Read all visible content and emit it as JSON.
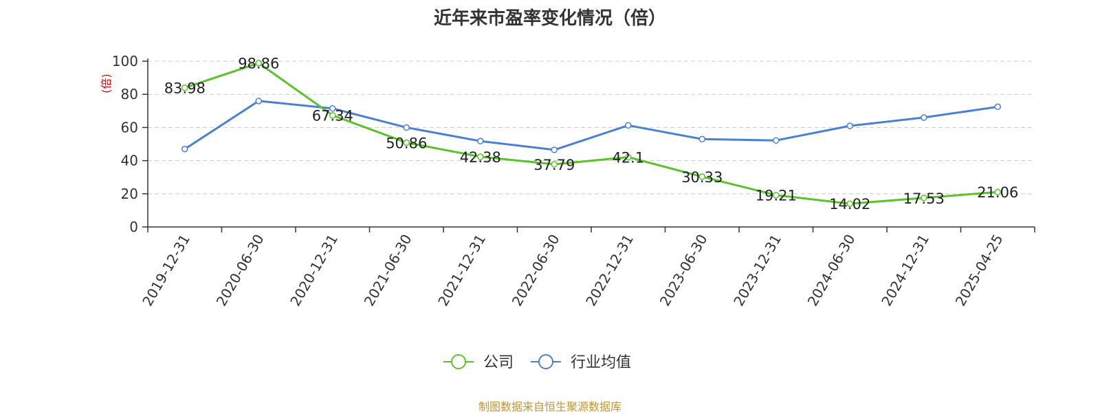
{
  "source_note": "制图数据来自恒生聚源数据库",
  "colors": {
    "company": "#5ac32a",
    "industry": "#4a7fd8",
    "ylabel": "#e00000",
    "source": "#c0962f"
  },
  "chart_data": {
    "type": "line",
    "title": "近年来市盈率变化情况（倍）",
    "ylabel": "(倍)",
    "xlabel": "",
    "ylim": [
      0,
      100
    ],
    "yticks": [
      0,
      20,
      40,
      60,
      80,
      100
    ],
    "grid": "horizontal-dashed",
    "legend_position": "bottom-center",
    "categories": [
      "2019-12-31",
      "2020-06-30",
      "2020-12-31",
      "2021-06-30",
      "2021-12-31",
      "2022-06-30",
      "2022-12-31",
      "2023-06-30",
      "2023-12-31",
      "2024-06-30",
      "2024-12-31",
      "2025-04-25"
    ],
    "series": [
      {
        "name": "公司",
        "values": [
          83.98,
          98.86,
          67.34,
          50.86,
          42.38,
          37.79,
          42.1,
          30.33,
          19.21,
          14.02,
          17.53,
          21.06
        ],
        "labels": [
          "83.98",
          "98.86",
          "67.34",
          "50.86",
          "42.38",
          "37.79",
          "42.1",
          "30.33",
          "19.21",
          "14.02",
          "17.53",
          "21.06"
        ],
        "color": "#5ac32a"
      },
      {
        "name": "行业均值",
        "values": [
          47.0,
          76.0,
          71.5,
          60.0,
          51.8,
          46.5,
          61.3,
          53.0,
          52.2,
          61.0,
          66.0,
          72.5
        ],
        "color": "#4a7fd8"
      }
    ]
  }
}
